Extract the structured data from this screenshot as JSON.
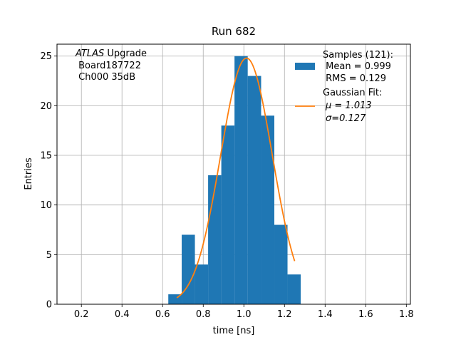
{
  "chart_data": {
    "type": "bar",
    "title": "Run 682",
    "xlabel": "time [ns]",
    "ylabel": "Entries",
    "xlim": [
      0.08,
      1.82
    ],
    "ylim": [
      0,
      26.2
    ],
    "xticks": [
      0.2,
      0.4,
      0.6,
      0.8,
      1.0,
      1.2,
      1.4,
      1.6,
      1.8
    ],
    "xtick_labels": [
      "0.2",
      "0.4",
      "0.6",
      "0.8",
      "1.0",
      "1.2",
      "1.4",
      "1.6",
      "1.8"
    ],
    "yticks": [
      0,
      5,
      10,
      15,
      20,
      25
    ],
    "ytick_labels": [
      "0",
      "5",
      "10",
      "15",
      "20",
      "25"
    ],
    "grid": true,
    "bin_edges": [
      0.628,
      0.694,
      0.759,
      0.824,
      0.889,
      0.954,
      1.019,
      1.085,
      1.15,
      1.215,
      1.28
    ],
    "values": [
      1,
      7,
      4,
      13,
      18,
      25,
      23,
      19,
      8,
      3
    ],
    "fit": {
      "mu": 1.013,
      "sigma": 0.127,
      "amplitude": 24.8,
      "x_range": [
        0.67,
        1.25
      ]
    },
    "annotation": {
      "line1_italic": "ATLAS",
      "line1_rest": " Upgrade",
      "line2": " Board187722",
      "line3": " Ch000 35dB"
    },
    "legend": {
      "position": "top-right",
      "hist_lines": [
        "Samples (121):",
        " Mean = 0.999",
        " RMS = 0.129"
      ],
      "fit_lines": [
        "Gaussian Fit:",
        "μ = 1.013",
        "σ=0.127"
      ]
    },
    "colors": {
      "bars": "#1f77b4",
      "fit": "#ff7f0e",
      "grid": "#b0b0b0"
    }
  }
}
